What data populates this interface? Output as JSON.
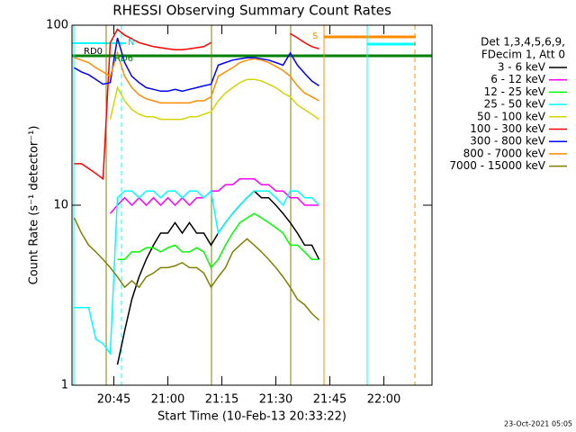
{
  "chart_data": {
    "type": "line",
    "title": "RHESSI Observing Summary Count Rates",
    "x_label": "Start Time (10-Feb-13 20:33:22)",
    "y_label": "Count Rate (s⁻¹ detector⁻¹)",
    "legend_header": [
      "Det 1,3,4,5,6,9,",
      "FDecim 1, Att 0"
    ],
    "legend": "right",
    "annotations": [
      "RD0",
      "N",
      "RD6",
      "S"
    ],
    "footer": "23-Oct-2021 05:05",
    "ylog": true,
    "ylim": [
      1,
      100
    ],
    "yticks": [
      1,
      10,
      100
    ],
    "xlim": [
      33.37,
      133.37
    ],
    "xticks": [
      {
        "value": 45,
        "label": "20:45"
      },
      {
        "value": 60,
        "label": "21:00"
      },
      {
        "value": 75,
        "label": "21:15"
      },
      {
        "value": 90,
        "label": "21:30"
      },
      {
        "value": 105,
        "label": "21:45"
      },
      {
        "value": 120,
        "label": "22:00"
      }
    ],
    "x": [
      34,
      36,
      38,
      40,
      42,
      44,
      46,
      48,
      50,
      52,
      54,
      56,
      58,
      60,
      62,
      64,
      66,
      68,
      70,
      72,
      74,
      76,
      78,
      80,
      82,
      84,
      86,
      88,
      90,
      92,
      94,
      96,
      98,
      100,
      102
    ],
    "series": [
      {
        "name": "3 - 6 keV",
        "color": "#000000",
        "values": [
          null,
          null,
          null,
          null,
          null,
          null,
          1.3,
          2,
          3,
          4,
          5,
          6,
          7,
          7,
          8,
          7,
          8,
          7,
          7,
          6,
          7,
          8,
          9,
          10,
          11,
          12,
          11,
          11,
          10,
          9,
          8,
          7,
          6,
          6,
          5
        ]
      },
      {
        "name": "6 - 12 keV",
        "color": "#ff00ff",
        "values": [
          null,
          null,
          null,
          null,
          null,
          9,
          10,
          11,
          10,
          11,
          10,
          11,
          10,
          11,
          10,
          11,
          10,
          11,
          11,
          12,
          12,
          13,
          13,
          14,
          14,
          14,
          13,
          13,
          12,
          12,
          11,
          11,
          10,
          10,
          10
        ]
      },
      {
        "name": "12 - 25 keV",
        "color": "#00ff00",
        "values": [
          null,
          null,
          null,
          null,
          null,
          null,
          5,
          5,
          5.5,
          5.5,
          5.8,
          5.8,
          5.5,
          5.8,
          6,
          5.5,
          5.5,
          5.8,
          5.5,
          4.5,
          5,
          6,
          7,
          8,
          8.5,
          9,
          8.5,
          8,
          7.5,
          7,
          6,
          6,
          5.5,
          5,
          5
        ]
      },
      {
        "name": "25 - 50 keV",
        "color": "#00ffff",
        "values": [
          2.7,
          2.7,
          2.7,
          1.8,
          1.7,
          1.5,
          11,
          12,
          12,
          11,
          12,
          12,
          11,
          12,
          12,
          11,
          12,
          12,
          11,
          12,
          7,
          8,
          9,
          10,
          11,
          12,
          12,
          12,
          11,
          10,
          12,
          12,
          11,
          11,
          10
        ]
      },
      {
        "name": "50 - 100 keV",
        "color": "#d4d400",
        "values": [
          null,
          null,
          null,
          null,
          null,
          30,
          45,
          38,
          34,
          32,
          31,
          31,
          30,
          30,
          30,
          30,
          31,
          31,
          32,
          33,
          38,
          42,
          45,
          48,
          50,
          50,
          49,
          47,
          45,
          42,
          40,
          36,
          34,
          32,
          30
        ]
      },
      {
        "name": "100 - 300 keV",
        "color": "#ff0000",
        "values": [
          17,
          17,
          16,
          15,
          14,
          80,
          95,
          88,
          84,
          80,
          78,
          76,
          75,
          74,
          73,
          73,
          74,
          75,
          76,
          80,
          null,
          null,
          null,
          null,
          null,
          null,
          null,
          null,
          null,
          null,
          90,
          85,
          80,
          76,
          74
        ]
      },
      {
        "name": "300 - 800 keV",
        "color": "#0000ff",
        "values": [
          58,
          55,
          53,
          50,
          47,
          48,
          85,
          62,
          52,
          48,
          45,
          44,
          43,
          43,
          44,
          43,
          44,
          45,
          46,
          47,
          60,
          62,
          64,
          65,
          66,
          66,
          65,
          64,
          62,
          60,
          70,
          60,
          54,
          49,
          46
        ]
      },
      {
        "name": "800 - 7000 keV",
        "color": "#ff8c00",
        "values": [
          66,
          64,
          62,
          58,
          55,
          52,
          70,
          52,
          45,
          41,
          39,
          38,
          37,
          37,
          37,
          37,
          37,
          38,
          38,
          40,
          52,
          55,
          58,
          62,
          64,
          65,
          64,
          62,
          59,
          56,
          52,
          46,
          42,
          40,
          38
        ]
      },
      {
        "name": "7000 - 15000 keV",
        "color": "#808000",
        "values": [
          8.5,
          7,
          6,
          5.5,
          5,
          4.5,
          4,
          3.5,
          3.8,
          3.5,
          4,
          4.2,
          4.5,
          4.5,
          4.6,
          4.8,
          4.5,
          4.5,
          4.2,
          3.5,
          4,
          4.5,
          5.5,
          6,
          6.5,
          6,
          5.5,
          5,
          4.5,
          4,
          3.5,
          3,
          2.8,
          2.5,
          2.3
        ]
      }
    ]
  }
}
